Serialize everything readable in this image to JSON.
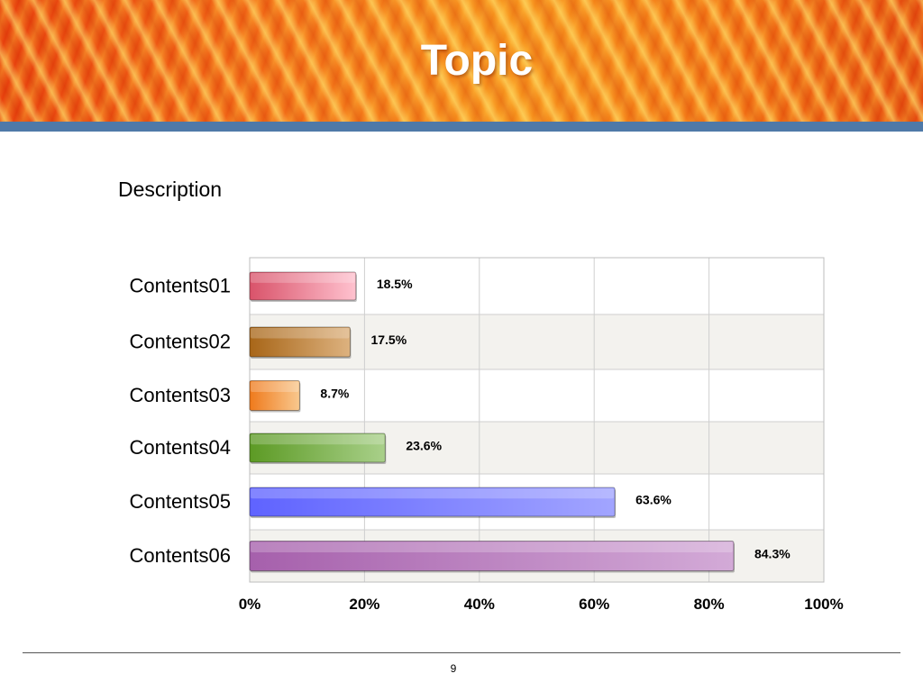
{
  "slide": {
    "title": "Topic",
    "description": "Description",
    "page_number": "9"
  },
  "chart_data": {
    "type": "bar",
    "orientation": "horizontal",
    "categories": [
      "Contents01",
      "Contents02",
      "Contents03",
      "Contents04",
      "Contents05",
      "Contents06"
    ],
    "values": [
      18.5,
      17.5,
      8.7,
      23.6,
      63.6,
      84.3
    ],
    "data_labels": [
      "18.5%",
      "17.5%",
      "8.7%",
      "23.6%",
      "63.6%",
      "84.3%"
    ],
    "bar_colors": [
      [
        "#d9536a",
        "#ffc2cf"
      ],
      [
        "#a86618",
        "#ddb27f"
      ],
      [
        "#ef7a1c",
        "#f9c88e"
      ],
      [
        "#5c9a24",
        "#a9d08a"
      ],
      [
        "#5f63ff",
        "#a2a5ff"
      ],
      [
        "#a660ac",
        "#d3aad7"
      ]
    ],
    "xlim": [
      0,
      100
    ],
    "xticks": [
      0,
      20,
      40,
      60,
      80,
      100
    ],
    "xtick_labels": [
      "0%",
      "20%",
      "40%",
      "60%",
      "80%",
      "100%"
    ],
    "grid": true
  }
}
